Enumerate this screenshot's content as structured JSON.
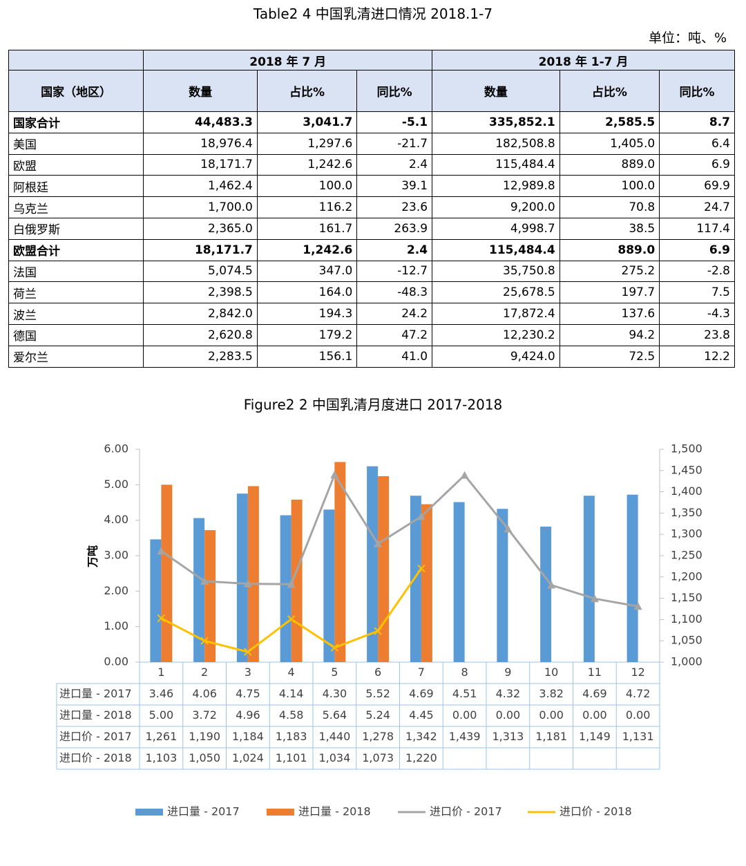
{
  "table": {
    "title": "Table2 4 中国乳清进口情况 2018.1-7",
    "unit": "单位：吨、%",
    "header_groups": [
      "2018 年 7 月",
      "2018 年 1-7 月"
    ],
    "country_header": "国家（地区）",
    "columns": [
      "数量",
      "占比%",
      "同比%",
      "数量",
      "占比%",
      "同比%"
    ],
    "bold_rows": [
      0,
      6
    ],
    "rows": [
      [
        "国家合计",
        "44,483.3",
        "3,041.7",
        "-5.1",
        "335,852.1",
        "2,585.5",
        "8.7"
      ],
      [
        "美国",
        "18,976.4",
        "1,297.6",
        "-21.7",
        "182,508.8",
        "1,405.0",
        "6.4"
      ],
      [
        "欧盟",
        "18,171.7",
        "1,242.6",
        "2.4",
        "115,484.4",
        "889.0",
        "6.9"
      ],
      [
        "阿根廷",
        "1,462.4",
        "100.0",
        "39.1",
        "12,989.8",
        "100.0",
        "69.9"
      ],
      [
        "乌克兰",
        "1,700.0",
        "116.2",
        "23.6",
        "9,200.0",
        "70.8",
        "24.7"
      ],
      [
        "白俄罗斯",
        "2,365.0",
        "161.7",
        "263.9",
        "4,998.7",
        "38.5",
        "117.4"
      ],
      [
        "欧盟合计",
        "18,171.7",
        "1,242.6",
        "2.4",
        "115,484.4",
        "889.0",
        "6.9"
      ],
      [
        "法国",
        "5,074.5",
        "347.0",
        "-12.7",
        "35,750.8",
        "275.2",
        "-2.8"
      ],
      [
        "荷兰",
        "2,398.5",
        "164.0",
        "-48.3",
        "25,678.5",
        "197.7",
        "7.5"
      ],
      [
        "波兰",
        "2,842.0",
        "194.3",
        "24.2",
        "17,872.4",
        "137.6",
        "-4.3"
      ],
      [
        "德国",
        "2,620.8",
        "179.2",
        "47.2",
        "12,230.2",
        "94.2",
        "23.8"
      ],
      [
        "爱尔兰",
        "2,283.5",
        "156.1",
        "41.0",
        "9,424.0",
        "72.5",
        "12.2"
      ]
    ]
  },
  "chart_data": {
    "type": "combo",
    "title": "Figure2 2 中国乳清月度进口 2017-2018",
    "y_label": "万吨",
    "categories": [
      "1",
      "2",
      "3",
      "4",
      "5",
      "6",
      "7",
      "8",
      "9",
      "10",
      "11",
      "12"
    ],
    "ylim": [
      0,
      6
    ],
    "yticks": [
      {
        "value": 0,
        "label": "0.00"
      },
      {
        "value": 1,
        "label": "1.00"
      },
      {
        "value": 2,
        "label": "2.00"
      },
      {
        "value": 3,
        "label": "3.00"
      },
      {
        "value": 4,
        "label": "4.00"
      },
      {
        "value": 5,
        "label": "5.00"
      },
      {
        "value": 6,
        "label": "6.00"
      }
    ],
    "y2lim": [
      1000,
      1500
    ],
    "y2ticks": [
      {
        "value": 1000,
        "label": "1,000"
      },
      {
        "value": 1050,
        "label": "1,050"
      },
      {
        "value": 1100,
        "label": "1,100"
      },
      {
        "value": 1150,
        "label": "1,150"
      },
      {
        "value": 1200,
        "label": "1,200"
      },
      {
        "value": 1250,
        "label": "1,250"
      },
      {
        "value": 1300,
        "label": "1,300"
      },
      {
        "value": 1350,
        "label": "1,350"
      },
      {
        "value": 1400,
        "label": "1,400"
      },
      {
        "value": 1450,
        "label": "1,450"
      },
      {
        "value": 1500,
        "label": "1,500"
      }
    ],
    "series": [
      {
        "name": "进口量 - 2017",
        "kind": "bar",
        "color": "#5b9bd5",
        "values": [
          3.46,
          4.06,
          4.75,
          4.14,
          4.3,
          5.52,
          4.69,
          4.51,
          4.32,
          3.82,
          4.69,
          4.72
        ],
        "value_labels": [
          "3.46",
          "4.06",
          "4.75",
          "4.14",
          "4.30",
          "5.52",
          "4.69",
          "4.51",
          "4.32",
          "3.82",
          "4.69",
          "4.72"
        ]
      },
      {
        "name": "进口量 - 2018",
        "kind": "bar",
        "color": "#ed7d31",
        "values": [
          5.0,
          3.72,
          4.96,
          4.58,
          5.64,
          5.24,
          4.45,
          0,
          0,
          0,
          0,
          0
        ],
        "value_labels": [
          "5.00",
          "3.72",
          "4.96",
          "4.58",
          "5.64",
          "5.24",
          "4.45",
          "0.00",
          "0.00",
          "0.00",
          "0.00",
          "0.00"
        ]
      },
      {
        "name": "进口价 - 2017",
        "kind": "line",
        "axis": "y2",
        "color": "#a5a5a5",
        "marker": "triangle",
        "values": [
          1261,
          1190,
          1184,
          1183,
          1440,
          1278,
          1342,
          1439,
          1313,
          1181,
          1149,
          1131
        ],
        "value_labels": [
          "1,261",
          "1,190",
          "1,184",
          "1,183",
          "1,440",
          "1,278",
          "1,342",
          "1,439",
          "1,313",
          "1,181",
          "1,149",
          "1,131"
        ]
      },
      {
        "name": "进口价 - 2018",
        "kind": "line",
        "axis": "y2",
        "color": "#ffc000",
        "marker": "x",
        "values": [
          1103,
          1050,
          1024,
          1101,
          1034,
          1073,
          1220,
          null,
          null,
          null,
          null,
          null
        ],
        "value_labels": [
          "1,103",
          "1,050",
          "1,024",
          "1,101",
          "1,034",
          "1,073",
          "1,220",
          null,
          null,
          null,
          null,
          null
        ]
      }
    ]
  }
}
